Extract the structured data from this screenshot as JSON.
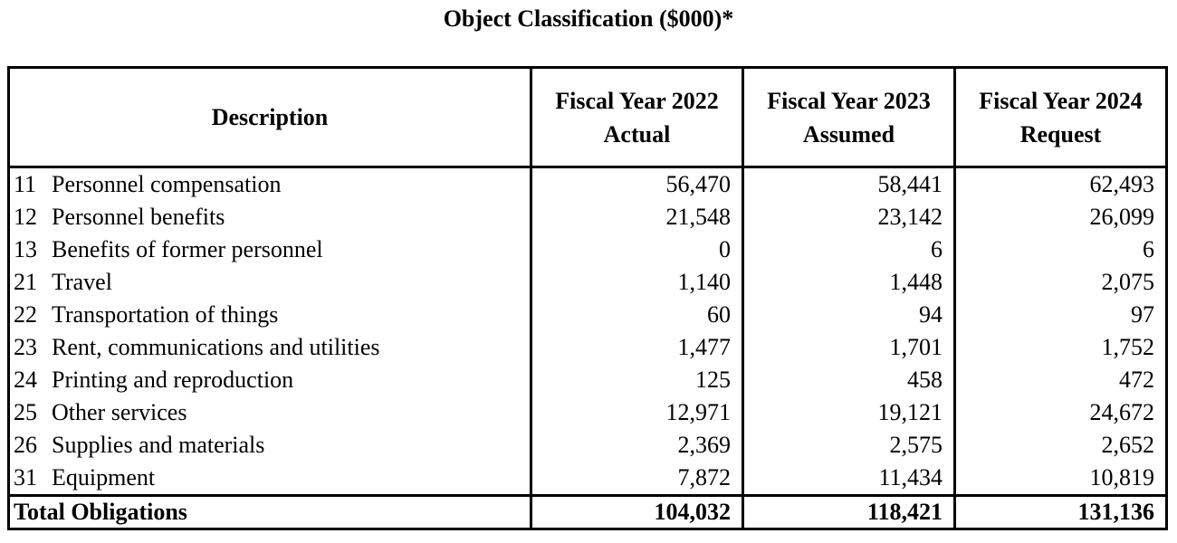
{
  "title": "Object Classification ($000)*",
  "table": {
    "headers": {
      "description": "Description",
      "fy2022": [
        "Fiscal Year 2022",
        "Actual"
      ],
      "fy2023": [
        "Fiscal Year 2023",
        "Assumed"
      ],
      "fy2024": [
        "Fiscal Year 2024",
        "Request"
      ]
    },
    "rows": [
      {
        "code": "11",
        "label": "Personnel compensation",
        "fy2022": "56,470",
        "fy2023": "58,441",
        "fy2024": "62,493"
      },
      {
        "code": "12",
        "label": "Personnel benefits",
        "fy2022": "21,548",
        "fy2023": "23,142",
        "fy2024": "26,099"
      },
      {
        "code": "13",
        "label": "Benefits of former personnel",
        "fy2022": "0",
        "fy2023": "6",
        "fy2024": "6"
      },
      {
        "code": "21",
        "label": "Travel",
        "fy2022": "1,140",
        "fy2023": "1,448",
        "fy2024": "2,075"
      },
      {
        "code": "22",
        "label": "Transportation of things",
        "fy2022": "60",
        "fy2023": "94",
        "fy2024": "97"
      },
      {
        "code": "23",
        "label": "Rent, communications and utilities",
        "fy2022": "1,477",
        "fy2023": "1,701",
        "fy2024": "1,752"
      },
      {
        "code": "24",
        "label": "Printing and reproduction",
        "fy2022": "125",
        "fy2023": "458",
        "fy2024": "472"
      },
      {
        "code": "25",
        "label": "Other services",
        "fy2022": "12,971",
        "fy2023": "19,121",
        "fy2024": "24,672"
      },
      {
        "code": "26",
        "label": "Supplies and materials",
        "fy2022": "2,369",
        "fy2023": "2,575",
        "fy2024": "2,652"
      },
      {
        "code": "31",
        "label": "Equipment",
        "fy2022": "7,872",
        "fy2023": "11,434",
        "fy2024": "10,819"
      }
    ],
    "total": {
      "label": "Total Obligations",
      "fy2022": "104,032",
      "fy2023": "118,421",
      "fy2024": "131,136"
    }
  }
}
